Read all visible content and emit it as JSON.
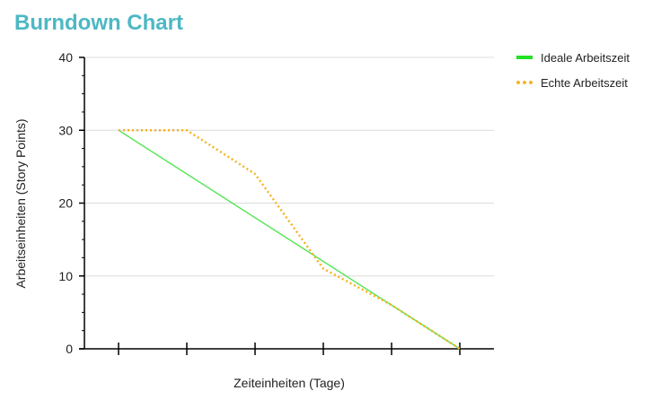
{
  "chart_data": {
    "type": "line",
    "title": "Burndown Chart",
    "xlabel": "Zeiteinheiten (Tage)",
    "ylabel": "Arbeitseinheiten (Story Points)",
    "x": [
      0,
      1,
      2,
      3,
      4,
      5
    ],
    "xlim": [
      0,
      5
    ],
    "ylim": [
      0,
      40
    ],
    "yticks": [
      0,
      10,
      20,
      30,
      40
    ],
    "grid": true,
    "legend_position": "top-right",
    "series": [
      {
        "name": "Ideale Arbeitszeit",
        "values": [
          30,
          24,
          18,
          12,
          6,
          0
        ],
        "color": "#5ce65c",
        "style": "solid"
      },
      {
        "name": "Echte Arbeitszeit",
        "values": [
          30,
          30,
          24,
          11,
          6,
          0
        ],
        "color": "#f5b324",
        "style": "dotted"
      }
    ]
  }
}
